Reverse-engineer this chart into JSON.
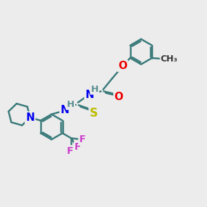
{
  "bg_color": "#ececec",
  "bond_color": "#3a7a7a",
  "bond_width": 1.8,
  "atom_colors": {
    "N": "#0000ee",
    "O": "#ee0000",
    "S": "#bbbb00",
    "F": "#cc44cc",
    "H": "#5a9090",
    "C": "#3a7a7a"
  },
  "font_size": 10,
  "ring_r": 0.62
}
